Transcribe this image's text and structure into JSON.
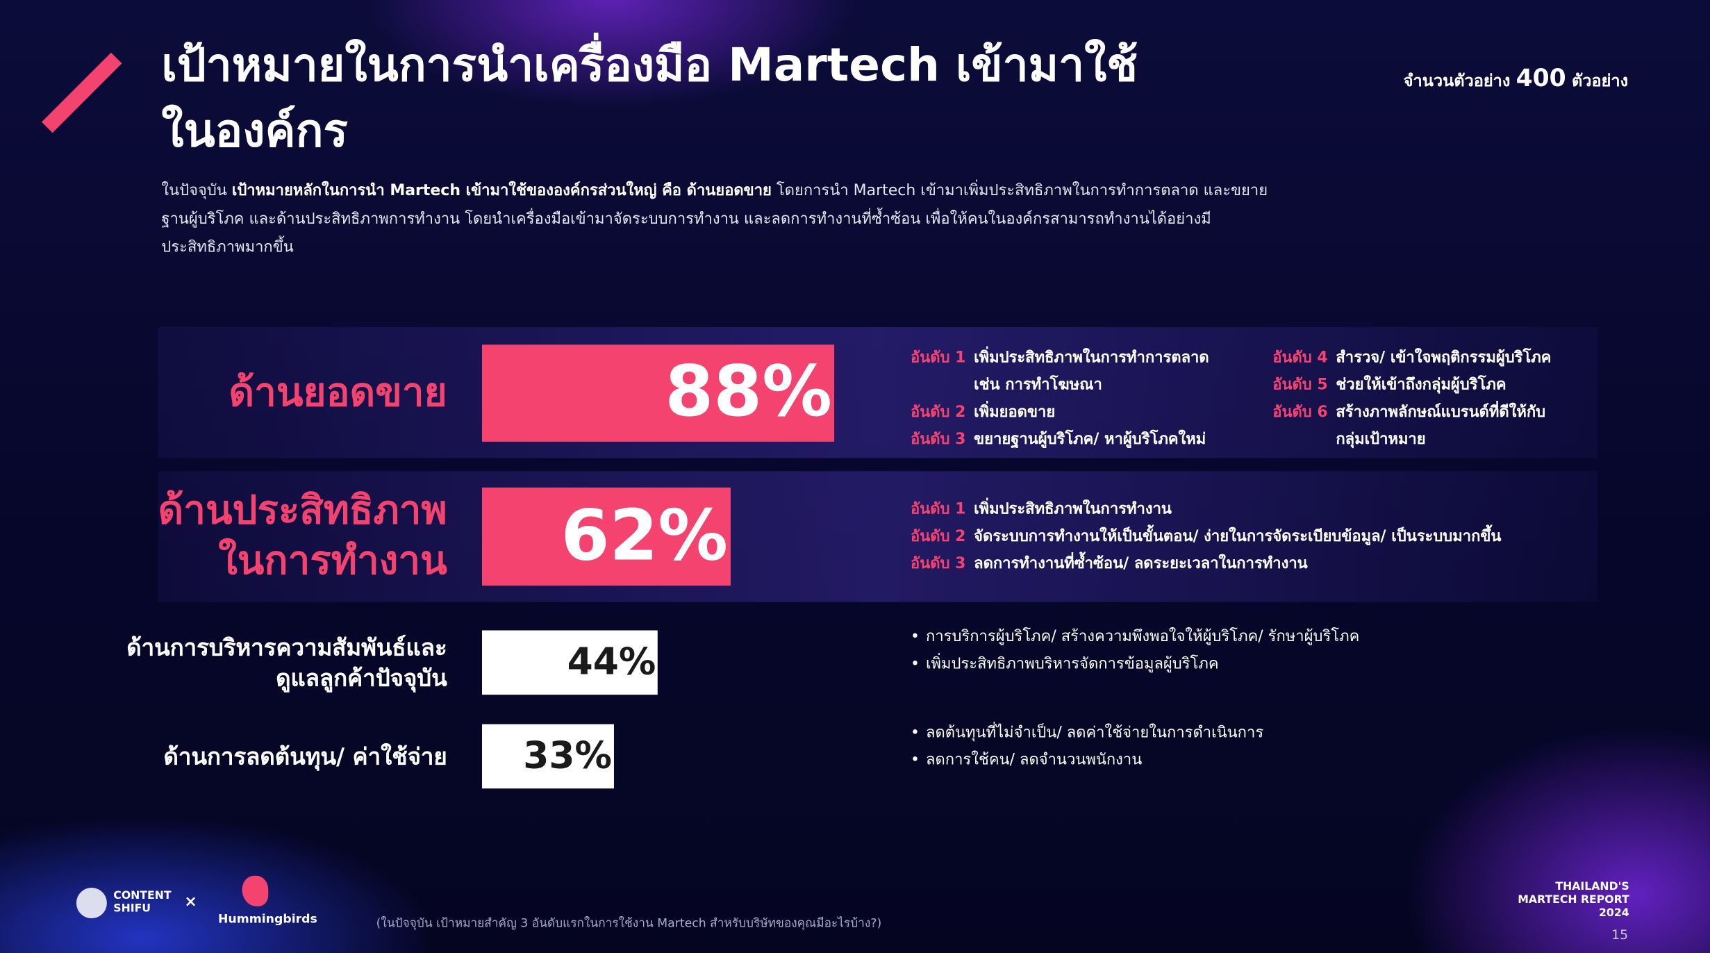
{
  "chart_data": {
    "type": "bar",
    "orientation": "horizontal",
    "title": "เป้าหมายในการนำเครื่องมือ Martech เข้ามาใช้\nในองค์กร",
    "sample_prefix": "จำนวนตัวอย่าง",
    "sample_number": "400",
    "sample_suffix": "ตัวอย่าง",
    "intro": [
      {
        "text": "ในปัจจุบัน ",
        "bold": false
      },
      {
        "text": "เป้าหมายหลักในการนำ Martech เข้ามาใช้ขององค์กรส่วนใหญ่ คือ ด้านยอดขาย",
        "bold": true
      },
      {
        "text": " โดยการนำ Martech เข้ามาเพิ่มประสิทธิภาพในการทำการตลาด และขยายฐานผู้บริโภค และด้านประสิทธิภาพการทำงาน โดยนำเครื่องมือเข้ามาจัดระบบการทำงาน และลดการทำงานที่ซ้ำซ้อน เพื่อให้คนในองค์กรสามารถทำงานได้อย่างมีประสิทธิภาพมากขึ้น",
        "bold": false
      }
    ],
    "categories": [
      "ด้านยอดขาย",
      "ด้านประสิทธิภาพ\nในการทำงาน",
      "ด้านการบริหารความสัมพันธ์และ\nดูแลลูกค้าปัจจุบัน",
      "ด้านการลดต้นทุน/ ค่าใช้จ่าย"
    ],
    "values": [
      88,
      62,
      44,
      33
    ],
    "value_labels": [
      "88%",
      "62%",
      "44%",
      "33%"
    ],
    "colors": [
      "#f5436f",
      "#f5436f",
      "#ffffff",
      "#ffffff"
    ],
    "label_colors": [
      "#f5436f",
      "#f5436f",
      "#ffffff",
      "#ffffff"
    ],
    "value_label_colors": [
      "#ffffff",
      "#ffffff",
      "#1a1a1a",
      "#1a1a1a"
    ],
    "xlim": [
      0,
      100
    ],
    "details": [
      [
        {
          "rank": "อันดับ 1",
          "text": "เพิ่มประสิทธิภาพในการทำการตลาด\nเช่น การทำโฆษณา"
        },
        {
          "rank": "อันดับ 2",
          "text": "เพิ่มยอดขาย"
        },
        {
          "rank": "อันดับ 3",
          "text": "ขยายฐานผู้บริโภค/ หาผู้บริโภคใหม่"
        },
        {
          "rank": "อันดับ 4",
          "text": "สำรวจ/ เข้าใจพฤติกรรมผู้บริโภค"
        },
        {
          "rank": "อันดับ 5",
          "text": "ช่วยให้เข้าถึงกลุ่มผู้บริโภค"
        },
        {
          "rank": "อันดับ 6",
          "text": "สร้างภาพลักษณ์แบรนด์ที่ดีให้กับ\nกลุ่มเป้าหมาย"
        }
      ],
      [
        {
          "rank": "อันดับ 1",
          "text": "เพิ่มประสิทธิภาพในการทำงาน"
        },
        {
          "rank": "อันดับ 2",
          "text": "จัดระบบการทำงานให้เป็นขั้นตอน/ ง่ายในการจัดระเบียบข้อมูล/ เป็นระบบมากขึ้น"
        },
        {
          "rank": "อันดับ 3",
          "text": "ลดการทำงานที่ซ้ำซ้อน/ ลดระยะเวลาในการทำงาน"
        }
      ],
      [
        {
          "text": "การบริการผู้บริโภค/ สร้างความพึงพอใจให้ผู้บริโภค/ รักษาผู้บริโภค"
        },
        {
          "text": "เพิ่มประสิทธิภาพบริหารจัดการข้อมูลผู้บริโภค"
        }
      ],
      [
        {
          "text": "ลดต้นทุนที่ไม่จำเป็น/ ลดค่าใช้จ่ายในการดำเนินการ"
        },
        {
          "text": "ลดการใช้คน/ ลดจำนวนพนักงาน"
        }
      ]
    ],
    "footnote": "(ในปัจจุบัน เป้าหมายสำคัญ 3 อันดับแรกในการใช้งาน Martech สำหรับบริษัทของคุณมีอะไรบ้าง?)",
    "logo_left": "CONTENT\nSHIFU",
    "logo_times": "×",
    "logo_right": "Hummingbirds",
    "report_name": "THAILAND'S\nMARTECH REPORT\n2024",
    "page_number": "15"
  }
}
